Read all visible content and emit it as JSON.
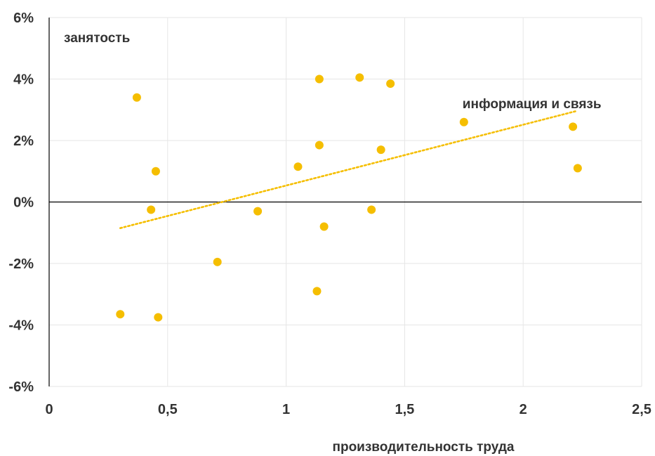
{
  "chart_data": {
    "type": "scatter",
    "title": "",
    "xlabel": "производительность труда",
    "ylabel": "занятость",
    "xlim": [
      0,
      2.5
    ],
    "ylim": [
      -6,
      6
    ],
    "x_ticks": [
      0,
      0.5,
      1,
      1.5,
      2,
      2.5
    ],
    "x_tick_labels": [
      "0",
      "0,5",
      "1",
      "1,5",
      "2",
      "2,5"
    ],
    "y_ticks": [
      -6,
      -4,
      -2,
      0,
      2,
      4,
      6
    ],
    "y_tick_labels": [
      "-6%",
      "-4%",
      "-2%",
      "0%",
      "2%",
      "4%",
      "6%"
    ],
    "grid": true,
    "points": [
      {
        "x": 0.37,
        "y": 3.4
      },
      {
        "x": 0.45,
        "y": 1.0
      },
      {
        "x": 0.43,
        "y": -0.25
      },
      {
        "x": 0.3,
        "y": -3.65
      },
      {
        "x": 0.46,
        "y": -3.75
      },
      {
        "x": 0.71,
        "y": -1.95
      },
      {
        "x": 0.88,
        "y": -0.3
      },
      {
        "x": 1.05,
        "y": 1.15
      },
      {
        "x": 1.14,
        "y": 4.0
      },
      {
        "x": 1.14,
        "y": 1.85
      },
      {
        "x": 1.16,
        "y": -0.8
      },
      {
        "x": 1.13,
        "y": -2.9
      },
      {
        "x": 1.31,
        "y": 4.05
      },
      {
        "x": 1.44,
        "y": 3.85
      },
      {
        "x": 1.4,
        "y": 1.7
      },
      {
        "x": 1.36,
        "y": -0.25
      },
      {
        "x": 1.75,
        "y": 2.6
      },
      {
        "x": 2.21,
        "y": 2.45
      },
      {
        "x": 2.23,
        "y": 1.1
      }
    ],
    "trendline": {
      "style": "dotted",
      "start": {
        "x": 0.3,
        "y": -0.85
      },
      "end": {
        "x": 2.22,
        "y": 2.95
      }
    },
    "annotations": [
      {
        "text": "информация и связь",
        "x": 1.75,
        "y": 3.05
      }
    ],
    "colors": {
      "points": "#F5BE00",
      "trendline": "#F5BE00",
      "grid": "#E6E6E6",
      "zero_line": "#000000",
      "axis": "#000000",
      "text": "#333333"
    }
  }
}
